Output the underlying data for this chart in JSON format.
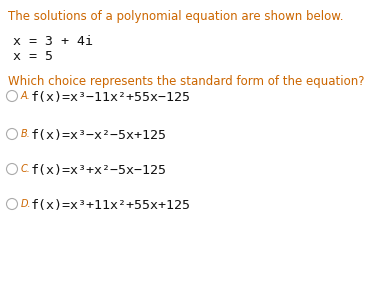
{
  "bg_color": "#ffffff",
  "orange_color": "#cc6600",
  "black_color": "#111111",
  "intro_text": "The solutions of a polynomial equation are shown below.",
  "sol1": "x = 3 + 4i",
  "sol2": "x = 5",
  "question": "Which choice represents the standard form of the equation?",
  "option_labels": [
    "A.",
    "B.",
    "C.",
    "D."
  ],
  "option_formulas_parts": [
    [
      "f(x) = x",
      "3",
      "−1 1x",
      "2",
      "+ 5 5x− 125"
    ],
    [
      "f(x) = x",
      "3",
      "−x",
      "2",
      "−5x + 125"
    ],
    [
      "f(x) = x",
      "3",
      "+x",
      "2",
      "−5x− 125"
    ],
    [
      "f(x) = x",
      "3",
      "+ 1 1x",
      "2",
      "+ 5 5x + 125"
    ]
  ]
}
